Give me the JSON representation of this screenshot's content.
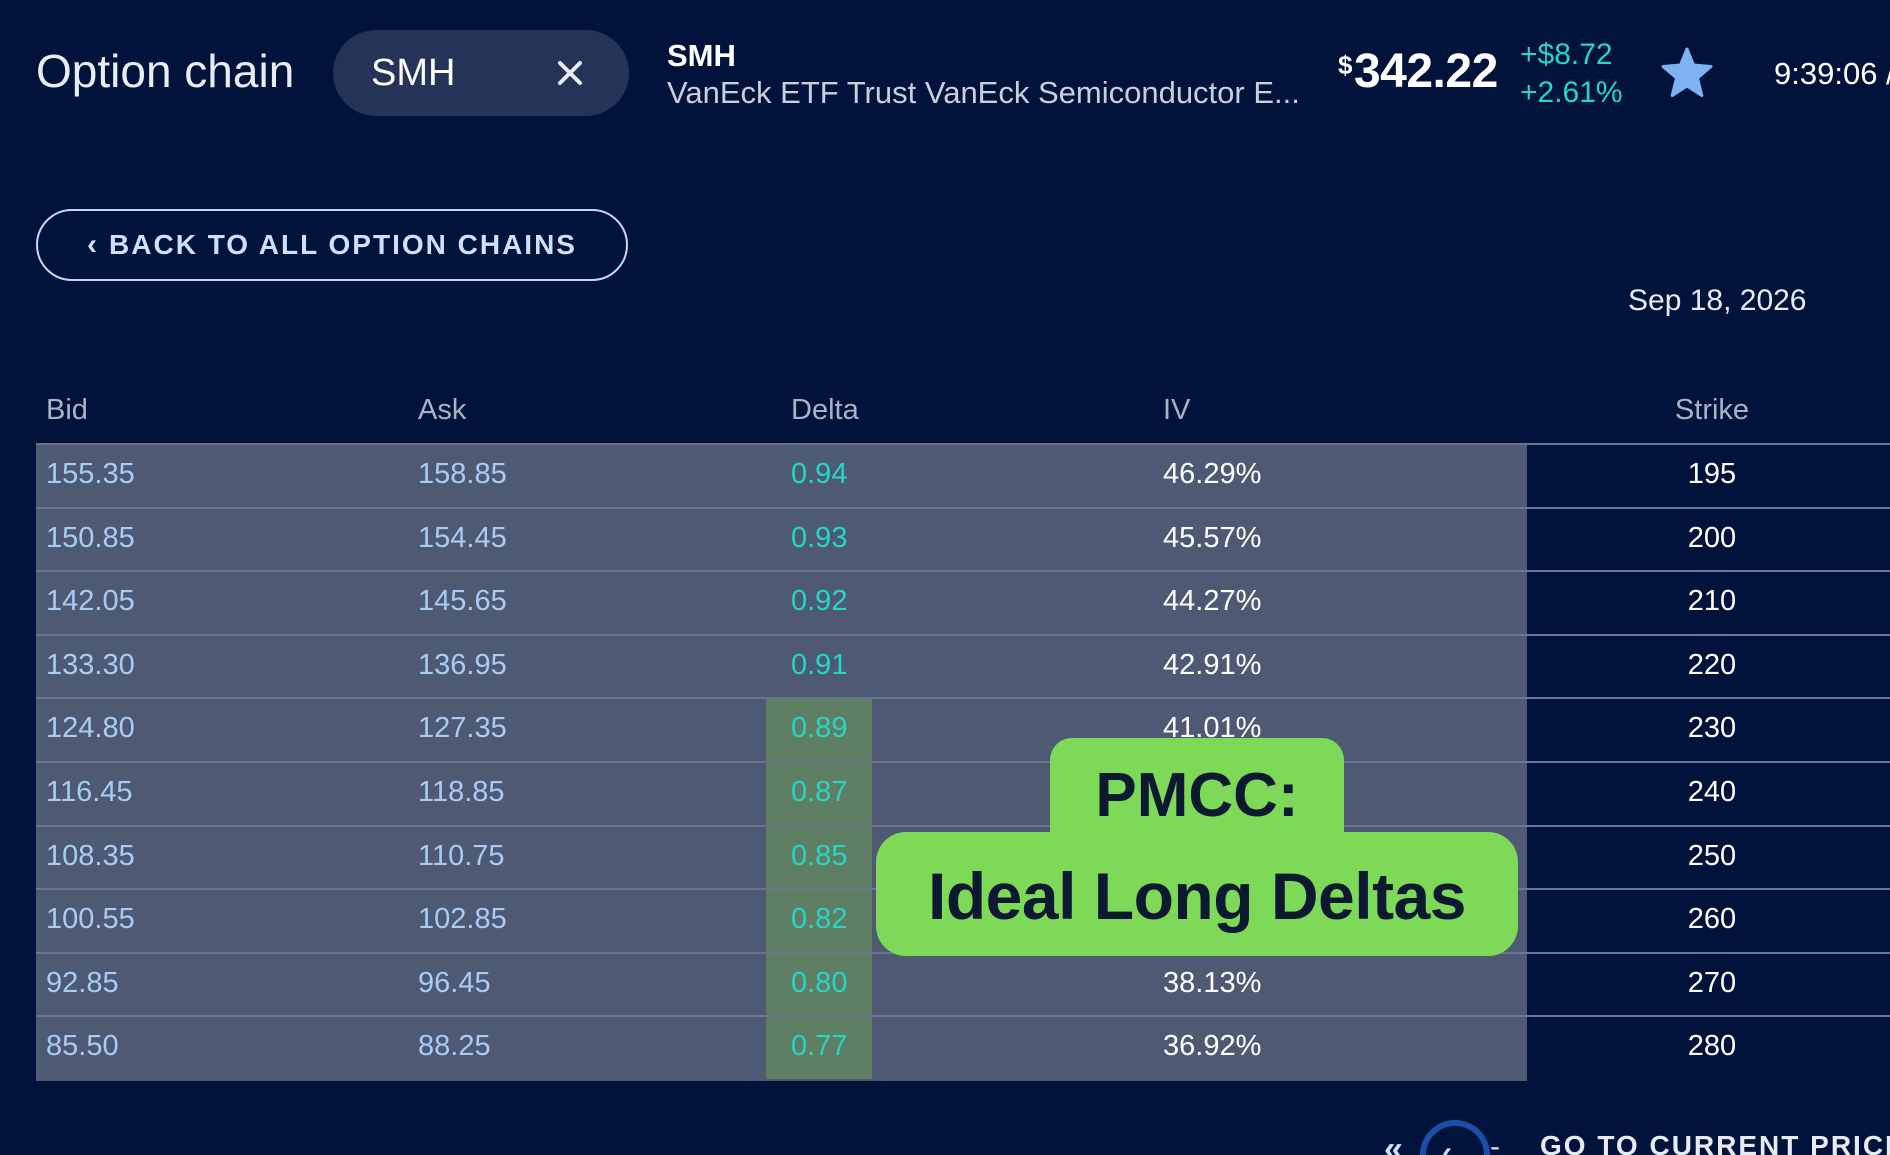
{
  "header": {
    "title": "Option chain",
    "search": {
      "value": "SMH"
    },
    "ticker": "SMH",
    "fund_name": "VanEck ETF Trust VanEck Semiconductor E...",
    "price_symbol": "$",
    "price": "342.22",
    "change_abs": "+$8.72",
    "change_pct": "+2.61%",
    "time": "9:39:06 /"
  },
  "back_button": {
    "label": "BACK TO ALL OPTION CHAINS"
  },
  "expiration": "Sep 18, 2026",
  "table": {
    "columns": [
      "Bid",
      "Ask",
      "Delta",
      "IV",
      "Strike"
    ],
    "rows": [
      {
        "bid": "155.35",
        "ask": "158.85",
        "delta": "0.94",
        "iv": "46.29%",
        "strike": "195"
      },
      {
        "bid": "150.85",
        "ask": "154.45",
        "delta": "0.93",
        "iv": "45.57%",
        "strike": "200"
      },
      {
        "bid": "142.05",
        "ask": "145.65",
        "delta": "0.92",
        "iv": "44.27%",
        "strike": "210"
      },
      {
        "bid": "133.30",
        "ask": "136.95",
        "delta": "0.91",
        "iv": "42.91%",
        "strike": "220"
      },
      {
        "bid": "124.80",
        "ask": "127.35",
        "delta": "0.89",
        "iv": "41.01%",
        "strike": "230"
      },
      {
        "bid": "116.45",
        "ask": "118.85",
        "delta": "0.87",
        "iv": "",
        "strike": "240"
      },
      {
        "bid": "108.35",
        "ask": "110.75",
        "delta": "0.85",
        "iv": "",
        "strike": "250"
      },
      {
        "bid": "100.55",
        "ask": "102.85",
        "delta": "0.82",
        "iv": "",
        "strike": "260"
      },
      {
        "bid": "92.85",
        "ask": "96.45",
        "delta": "0.80",
        "iv": "38.13%",
        "strike": "270"
      },
      {
        "bid": "85.50",
        "ask": "88.25",
        "delta": "0.77",
        "iv": "36.92%",
        "strike": "280"
      }
    ]
  },
  "callout": {
    "line1": "PMCC:",
    "line2": "Ideal Long Deltas"
  },
  "bottom_nav": {
    "first": "«",
    "prev": "‹",
    "dash": "-",
    "goto_label": "GO TO CURRENT PRICE"
  },
  "colors": {
    "background": "#01133a",
    "accent_teal": "#25d6c7",
    "callout_green": "#7dd957",
    "table_row": "#4e5a74"
  }
}
